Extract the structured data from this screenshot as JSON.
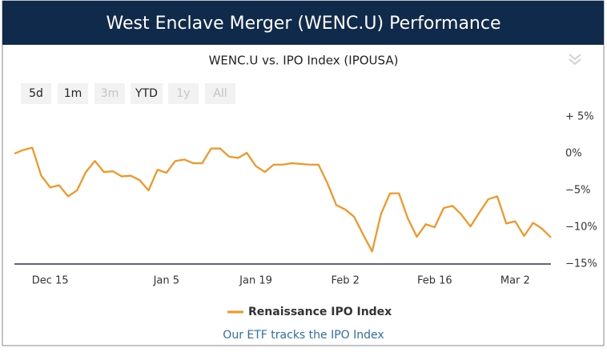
{
  "header": {
    "title": "West Enclave Merger (WENC.U) Performance"
  },
  "range_buttons": [
    {
      "label": "5d",
      "enabled": true
    },
    {
      "label": "1m",
      "enabled": true
    },
    {
      "label": "3m",
      "enabled": false
    },
    {
      "label": "YTD",
      "enabled": true
    },
    {
      "label": "1y",
      "enabled": false
    },
    {
      "label": "All",
      "enabled": false
    }
  ],
  "footer_link": "Our ETF tracks the IPO Index",
  "chart_data": {
    "type": "line",
    "title": "WENC.U vs. IPO Index (IPOUSA)",
    "categories": [
      null,
      null,
      null,
      null,
      "Dec 15",
      null,
      null,
      null,
      null,
      null,
      null,
      null,
      null,
      null,
      null,
      null,
      null,
      "Jan 5",
      null,
      null,
      null,
      null,
      null,
      null,
      null,
      null,
      null,
      "Jan 19",
      null,
      null,
      null,
      null,
      null,
      null,
      null,
      null,
      null,
      "Feb 2",
      null,
      null,
      null,
      null,
      null,
      null,
      null,
      null,
      null,
      "Feb 16",
      null,
      null,
      null,
      null,
      null,
      null,
      null,
      null,
      "Mar 2",
      null,
      null,
      null,
      null
    ],
    "series": [
      {
        "name": "Renaissance IPO Index",
        "color": "#f7931e",
        "values": [
          0,
          0.5,
          0.8,
          -3.0,
          -4.6,
          -4.3,
          -5.8,
          -5.0,
          -2.5,
          -1.0,
          -2.5,
          -2.4,
          -3.1,
          -3.0,
          -3.6,
          -5.0,
          -2.2,
          -2.6,
          -1.0,
          -0.8,
          -1.3,
          -1.3,
          0.7,
          0.7,
          -0.4,
          -0.6,
          0.1,
          -1.7,
          -2.5,
          -1.5,
          -1.5,
          -1.3,
          -1.4,
          -1.5,
          -1.5,
          -4.0,
          -7.0,
          -7.6,
          -8.6,
          -11.0,
          -13.3,
          -8.2,
          -5.4,
          -5.4,
          -8.8,
          -11.3,
          -9.6,
          -10.0,
          -7.4,
          -7.1,
          -8.3,
          -9.9,
          -8.0,
          -6.2,
          -5.8,
          -9.5,
          -9.2,
          -11.2,
          -9.4,
          -10.2,
          -11.4
        ]
      }
    ],
    "ylim": [
      -15,
      5
    ],
    "yticks": [
      {
        "value": 5,
        "label": "+ 5%"
      },
      {
        "value": 0,
        "label": "0%"
      },
      {
        "value": -5,
        "label": "−5%"
      },
      {
        "value": -10,
        "label": "−10%"
      },
      {
        "value": -15,
        "label": "−15%"
      }
    ],
    "axis_color": "#3b2a55"
  }
}
